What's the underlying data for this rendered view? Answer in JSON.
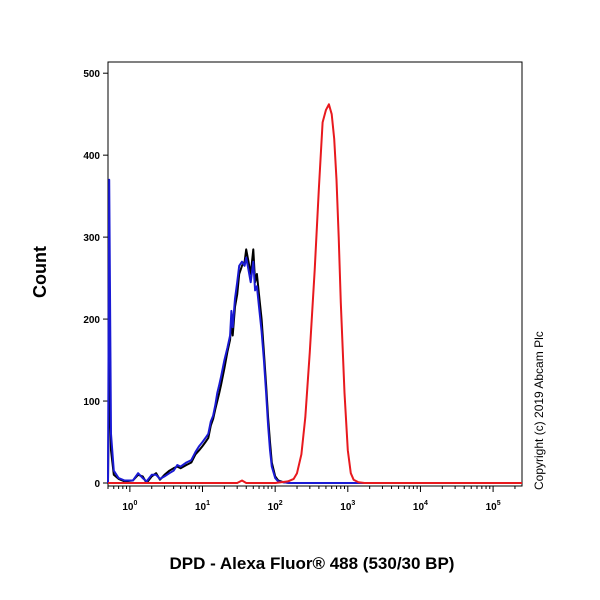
{
  "chart_data": {
    "type": "line",
    "xlabel": "DPD - Alexa Fluor® 488 (530/30 BP)",
    "ylabel": "Count",
    "xscale": "log",
    "xlim": [
      0.5,
      250000
    ],
    "ylim": [
      0,
      510
    ],
    "y_ticks": [
      0,
      100,
      200,
      300,
      400,
      500
    ],
    "x_ticks": [
      {
        "value": 1,
        "base": "10",
        "exp": "0"
      },
      {
        "value": 10,
        "base": "10",
        "exp": "1"
      },
      {
        "value": 100,
        "base": "10",
        "exp": "2"
      },
      {
        "value": 1000,
        "base": "10",
        "exp": "3"
      },
      {
        "value": 10000,
        "base": "10",
        "exp": "4"
      },
      {
        "value": 100000,
        "base": "10",
        "exp": "5"
      }
    ],
    "grid": false,
    "legend": "none",
    "copyright": "Copyright (c) 2019 Abcam Plc",
    "series": [
      {
        "color": "#000000",
        "x": [
          0.5,
          0.52,
          0.55,
          0.6,
          0.7,
          0.85,
          1.1,
          1.3,
          1.5,
          1.7,
          2.0,
          2.3,
          2.6,
          3.0,
          3.5,
          4.0,
          4.5,
          5.0,
          6.0,
          7.0,
          8.0,
          9.0,
          10.0,
          11.0,
          12.0,
          13.0,
          14.0,
          15.0,
          16.0,
          17.0,
          18.0,
          20.0,
          22.0,
          24.0,
          25.0,
          26.0,
          28.0,
          30.0,
          32.0,
          35.0,
          38.0,
          40.0,
          43.0,
          46.0,
          50.0,
          53.0,
          56.0,
          60.0,
          65.0,
          70.0,
          75.0,
          80.0,
          85.0,
          90.0,
          100.0,
          110.0,
          130.0,
          160.0,
          200.0,
          300.0,
          500.0,
          1000.0,
          10000.0,
          250000.0
        ],
        "y": [
          0,
          150,
          40,
          10,
          5,
          2,
          3,
          10,
          8,
          0,
          8,
          12,
          4,
          10,
          15,
          18,
          20,
          18,
          22,
          25,
          35,
          40,
          45,
          50,
          55,
          70,
          78,
          90,
          100,
          110,
          120,
          140,
          160,
          175,
          200,
          180,
          215,
          230,
          255,
          265,
          270,
          285,
          270,
          255,
          285,
          245,
          255,
          230,
          200,
          160,
          120,
          80,
          50,
          25,
          8,
          3,
          1,
          0,
          0,
          0,
          0,
          0,
          0,
          0
        ]
      },
      {
        "color": "#1a1ad4",
        "x": [
          0.5,
          0.52,
          0.55,
          0.6,
          0.7,
          0.85,
          1.1,
          1.3,
          1.5,
          1.7,
          2.0,
          2.3,
          2.6,
          3.0,
          3.5,
          4.0,
          4.5,
          5.0,
          6.0,
          7.0,
          8.0,
          9.0,
          10.0,
          11.0,
          12.0,
          13.0,
          14.0,
          15.0,
          16.0,
          17.0,
          18.0,
          20.0,
          22.0,
          24.0,
          25.0,
          26.0,
          28.0,
          30.0,
          32.0,
          35.0,
          38.0,
          40.0,
          43.0,
          46.0,
          50.0,
          53.0,
          56.0,
          60.0,
          65.0,
          70.0,
          75.0,
          80.0,
          85.0,
          90.0,
          100.0,
          110.0,
          130.0,
          160.0,
          200.0,
          300.0,
          500.0,
          1000.0,
          10000.0,
          250000.0
        ],
        "y": [
          0,
          370,
          60,
          15,
          6,
          3,
          3,
          12,
          6,
          2,
          10,
          10,
          5,
          8,
          12,
          15,
          22,
          20,
          25,
          28,
          38,
          45,
          50,
          55,
          60,
          75,
          82,
          95,
          110,
          120,
          130,
          150,
          165,
          180,
          210,
          190,
          225,
          245,
          265,
          270,
          265,
          275,
          260,
          245,
          270,
          235,
          240,
          215,
          185,
          150,
          110,
          70,
          40,
          20,
          6,
          2,
          1,
          0,
          0,
          0,
          0,
          0,
          0,
          0
        ]
      },
      {
        "color": "#e8191e",
        "x": [
          0.5,
          10.0,
          30.0,
          35.0,
          40.0,
          50.0,
          100.0,
          150.0,
          180.0,
          200.0,
          230.0,
          260.0,
          300.0,
          350.0,
          400.0,
          450.0,
          500.0,
          550.0,
          600.0,
          650.0,
          700.0,
          750.0,
          800.0,
          900.0,
          1000.0,
          1100.0,
          1200.0,
          1400.0,
          1700.0,
          2000.0,
          10000.0,
          250000.0
        ],
        "y": [
          0,
          0,
          0,
          3,
          0,
          0,
          0,
          2,
          5,
          12,
          35,
          80,
          160,
          260,
          360,
          440,
          455,
          462,
          450,
          420,
          370,
          300,
          220,
          110,
          40,
          12,
          4,
          1,
          0,
          0,
          0,
          0
        ]
      }
    ]
  }
}
